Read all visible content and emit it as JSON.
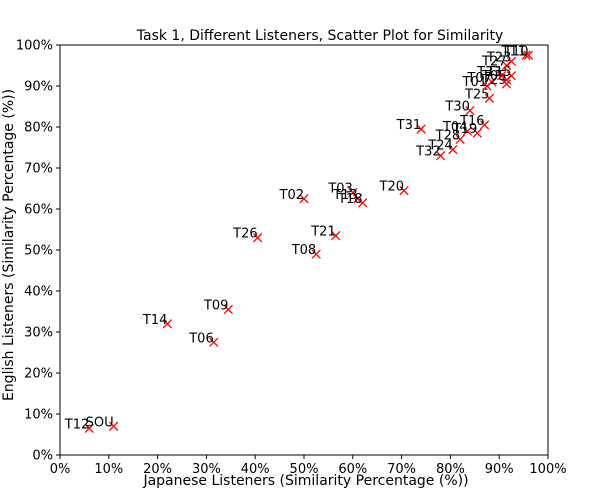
{
  "chart_data": {
    "type": "scatter",
    "title": "Task 1, Different Listeners, Scatter Plot for Similarity",
    "xlabel": "Japanese Listeners (Similarity Percentage (%))",
    "ylabel": "English Listeners (Similarity Percentage (%))",
    "xlim": [
      0,
      100
    ],
    "ylim": [
      0,
      100
    ],
    "x_ticks": [
      "0%",
      "10%",
      "20%",
      "30%",
      "40%",
      "50%",
      "60%",
      "70%",
      "80%",
      "90%",
      "100%"
    ],
    "y_ticks": [
      "0%",
      "10%",
      "20%",
      "30%",
      "40%",
      "50%",
      "60%",
      "70%",
      "80%",
      "90%",
      "100%"
    ],
    "marker_color": "#ff0000",
    "points": [
      {
        "label": "T12",
        "x": 6,
        "y": 6.5
      },
      {
        "label": "SOU",
        "x": 11,
        "y": 7
      },
      {
        "label": "T06",
        "x": 31.5,
        "y": 27.5
      },
      {
        "label": "T14",
        "x": 22,
        "y": 32
      },
      {
        "label": "T09",
        "x": 34.5,
        "y": 35.5
      },
      {
        "label": "T08",
        "x": 52.5,
        "y": 49
      },
      {
        "label": "T26",
        "x": 40.5,
        "y": 53
      },
      {
        "label": "T21",
        "x": 56.5,
        "y": 53.5
      },
      {
        "label": "T02",
        "x": 50,
        "y": 62.5
      },
      {
        "label": "T03",
        "x": 60,
        "y": 64
      },
      {
        "label": "T13",
        "x": 61,
        "y": 62.5
      },
      {
        "label": "T18",
        "x": 62,
        "y": 61.5
      },
      {
        "label": "T20",
        "x": 70.5,
        "y": 64.5
      },
      {
        "label": "T32",
        "x": 78,
        "y": 73
      },
      {
        "label": "T24",
        "x": 80.5,
        "y": 74.5
      },
      {
        "label": "T28",
        "x": 82,
        "y": 77
      },
      {
        "label": "T31",
        "x": 74,
        "y": 79.5
      },
      {
        "label": "T04",
        "x": 83.5,
        "y": 79
      },
      {
        "label": "T19",
        "x": 85.5,
        "y": 78.5
      },
      {
        "label": "T16",
        "x": 87,
        "y": 80.5
      },
      {
        "label": "T30",
        "x": 84,
        "y": 84
      },
      {
        "label": "T25",
        "x": 88,
        "y": 87
      },
      {
        "label": "T01",
        "x": 87.5,
        "y": 90
      },
      {
        "label": "T07",
        "x": 88.5,
        "y": 91
      },
      {
        "label": "T29",
        "x": 91.5,
        "y": 90.5
      },
      {
        "label": "T05",
        "x": 91.5,
        "y": 91.5
      },
      {
        "label": "T33",
        "x": 90.5,
        "y": 92.5
      },
      {
        "label": "T15",
        "x": 92.5,
        "y": 92.5
      },
      {
        "label": "T27",
        "x": 91.5,
        "y": 95
      },
      {
        "label": "T23",
        "x": 92.5,
        "y": 96
      },
      {
        "label": "T11",
        "x": 95.5,
        "y": 97.5
      },
      {
        "label": "T10",
        "x": 96,
        "y": 97.5
      }
    ]
  }
}
